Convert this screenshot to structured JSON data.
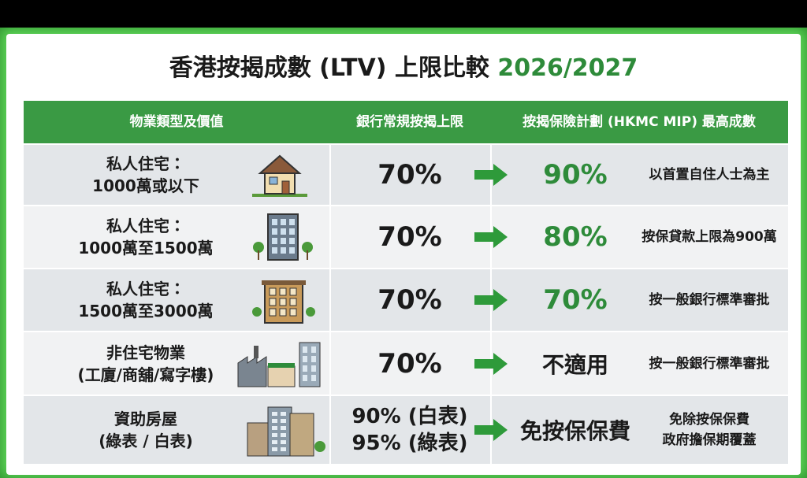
{
  "header": {
    "title": "香港按揭成數 (LTV) 上限比較",
    "year": "2026/2027"
  },
  "table": {
    "columns": [
      "物業類型及價值",
      "銀行常規按揭上限",
      "按揭保險計劃 (HKMC MIP) 最高成數"
    ],
    "rows": [
      {
        "property": [
          "私人住宅：",
          "1000萬或以下"
        ],
        "bank": [
          "70%"
        ],
        "mip": "90%",
        "note": [
          "以首置自住人士為主"
        ]
      },
      {
        "property": [
          "私人住宅：",
          "1000萬至1500萬"
        ],
        "bank": [
          "70%"
        ],
        "mip": "80%",
        "note": [
          "按保貸款上限為900萬"
        ]
      },
      {
        "property": [
          "私人住宅：",
          "1500萬至3000萬"
        ],
        "bank": [
          "70%"
        ],
        "mip": "70%",
        "note": [
          "按一般銀行標準審批"
        ]
      },
      {
        "property": [
          "非住宅物業",
          "(工廈/商舖/寫字樓)"
        ],
        "bank": [
          "70%"
        ],
        "mip": "不適用",
        "note": [
          "按一般銀行標準審批"
        ]
      },
      {
        "property": [
          "資助房屋",
          "(綠表 / 白表)"
        ],
        "bank": [
          "90% (白表)",
          "95% (綠表)"
        ],
        "mip": "免按保保費",
        "note": [
          "免除按保保費",
          "政府擔保期覆蓋"
        ]
      }
    ]
  }
}
